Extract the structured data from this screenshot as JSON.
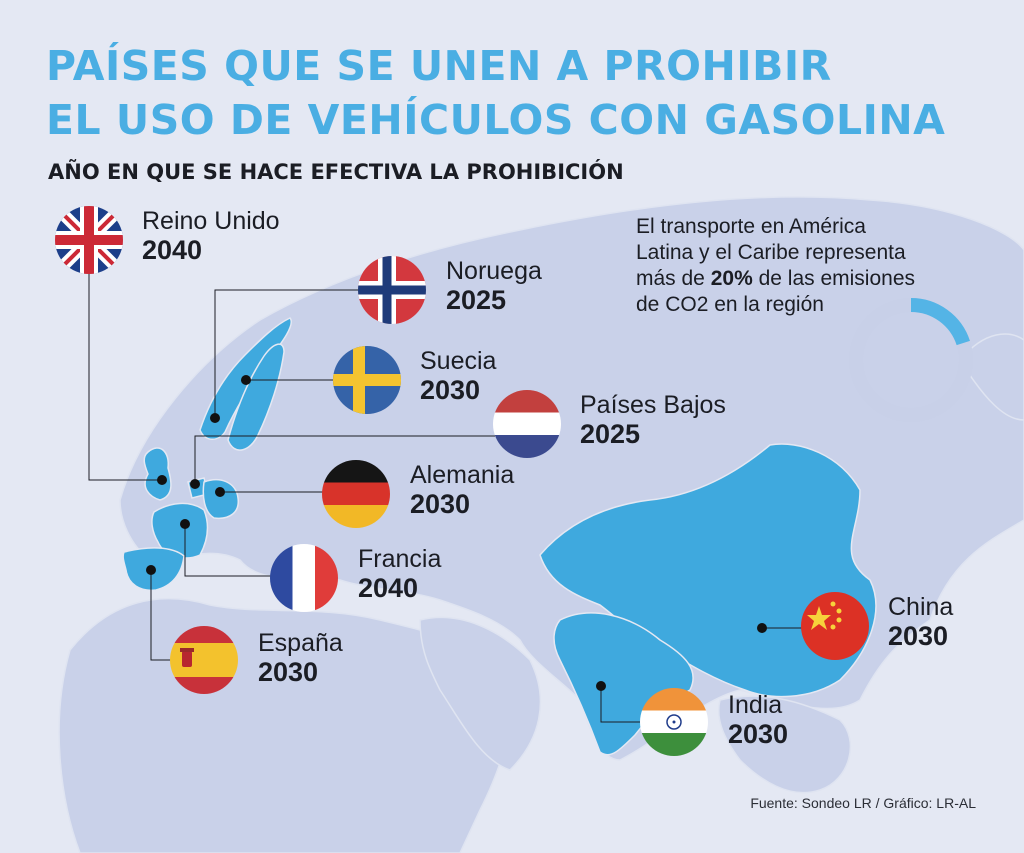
{
  "title": {
    "line1": "PAÍSES QUE SE UNEN A PROHIBIR",
    "line2": "EL USO DE VEHÍCULOS CON GASOLINA"
  },
  "subtitle": "AÑO EN QUE SE HACE EFECTIVA LA PROHIBICIÓN",
  "countries": [
    {
      "name": "Reino Unido",
      "year": "2040",
      "flag": "uk-flag"
    },
    {
      "name": "Noruega",
      "year": "2025",
      "flag": "norway-flag"
    },
    {
      "name": "Suecia",
      "year": "2030",
      "flag": "sweden-flag"
    },
    {
      "name": "Países Bajos",
      "year": "2025",
      "flag": "netherlands-flag"
    },
    {
      "name": "Alemania",
      "year": "2030",
      "flag": "germany-flag"
    },
    {
      "name": "Francia",
      "year": "2040",
      "flag": "france-flag"
    },
    {
      "name": "España",
      "year": "2030",
      "flag": "spain-flag"
    },
    {
      "name": "China",
      "year": "2030",
      "flag": "china-flag"
    },
    {
      "name": "India",
      "year": "2030",
      "flag": "india-flag"
    }
  ],
  "note": {
    "prefix": "El transporte en América Latina y el Caribe representa más de",
    "highlight": "20%",
    "suffix": "de las emisiones de CO2 en la región",
    "share": 0.2
  },
  "source": "Fuente: Sondeo LR / Gráfico: LR-AL",
  "colors": {
    "background": "#e4e8f3",
    "land": "#c9d1e9",
    "highlight": "#3fa9de",
    "title": "#4aaee3",
    "donut_track": "#c8d0e8",
    "donut_fill": "#54b4e6"
  }
}
